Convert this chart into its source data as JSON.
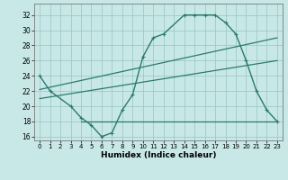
{
  "title": "",
  "xlabel": "Humidex (Indice chaleur)",
  "ylabel": "",
  "bg_color": "#c8e8e8",
  "grid_color": "#a0c8c8",
  "line_color": "#2a7a6a",
  "xlim": [
    -0.5,
    23.5
  ],
  "ylim": [
    15.5,
    33.5
  ],
  "xticks": [
    0,
    1,
    2,
    3,
    4,
    5,
    6,
    7,
    8,
    9,
    10,
    11,
    12,
    13,
    14,
    15,
    16,
    17,
    18,
    19,
    20,
    21,
    22,
    23
  ],
  "yticks": [
    16,
    18,
    20,
    22,
    24,
    26,
    28,
    30,
    32
  ],
  "line1_x": [
    0,
    1,
    3,
    4,
    5,
    6,
    7,
    8,
    9,
    10,
    11,
    12,
    14,
    15,
    16,
    17,
    18,
    19,
    20,
    21,
    22,
    23
  ],
  "line1_y": [
    24,
    22,
    20,
    18.5,
    17.5,
    16,
    16.5,
    19.5,
    21.5,
    26.5,
    29,
    29.5,
    32,
    32,
    32,
    32,
    31,
    29.5,
    26,
    22,
    19.5,
    18
  ],
  "line2_x": [
    0,
    23
  ],
  "line2_y": [
    22.2,
    29.0
  ],
  "line3_x": [
    0,
    23
  ],
  "line3_y": [
    21.0,
    26.0
  ],
  "line4_x": [
    4,
    23
  ],
  "line4_y": [
    18,
    18
  ],
  "marker_x": [
    0,
    1,
    3,
    4,
    5,
    6,
    7,
    8,
    9,
    10,
    11,
    12,
    14,
    15,
    16,
    17,
    18,
    19,
    20,
    21,
    22,
    23
  ],
  "marker_y": [
    24,
    22,
    20,
    18.5,
    17.5,
    16,
    16.5,
    19.5,
    21.5,
    26.5,
    29,
    29.5,
    32,
    32,
    32,
    32,
    31,
    29.5,
    26,
    22,
    19.5,
    18
  ]
}
